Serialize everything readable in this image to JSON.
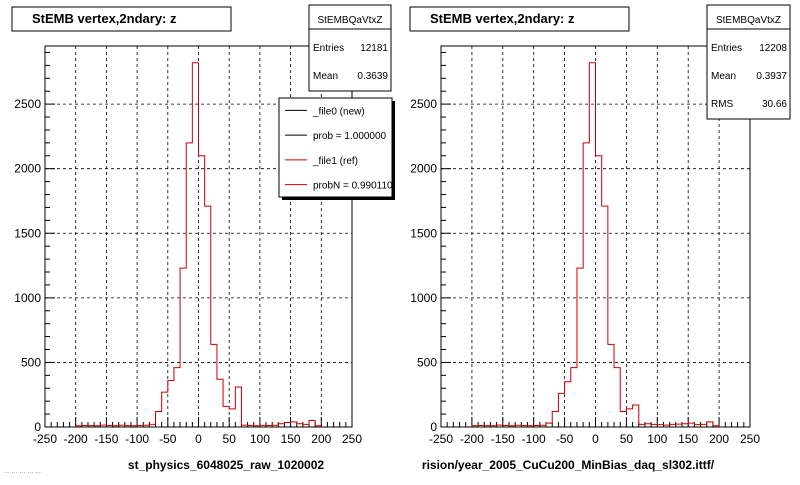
{
  "colors": {
    "background": "#ffffff",
    "ref_line": "#cc0000",
    "new_line": "#000000",
    "grid": "#000000"
  },
  "panels": [
    {
      "title": "StEMB  vertex,2ndary: z",
      "stats": {
        "name": "StEMBQaVtxZ",
        "rows": [
          {
            "label": "Entries",
            "value": "12181"
          },
          {
            "label": "Mean",
            "value": "0.3639"
          }
        ]
      },
      "legend": [
        {
          "label": "_file0 (new)",
          "color": "#000000"
        },
        {
          "label": "prob = 1.000000",
          "color": "#000000"
        },
        {
          "label": "_file1 (ref)",
          "color": "#cc0000"
        },
        {
          "label": "probN = 0.990110",
          "color": "#cc0000"
        }
      ],
      "xlabel": "st_physics_6048025_raw_1020002",
      "footer_text": "... ...  ... ... ..."
    },
    {
      "title": "StEMB  vertex,2ndary: z",
      "stats": {
        "name": "StEMBQaVtxZ",
        "rows": [
          {
            "label": "Entries",
            "value": "12208"
          },
          {
            "label": "Mean",
            "value": "0.3937"
          },
          {
            "label": "RMS",
            "value": "30.66"
          }
        ]
      },
      "legend": [],
      "xlabel": "rision/year_2005_CuCu200_MinBias_daq_sl302.ittf/",
      "footer_text": ""
    }
  ],
  "chart_data": [
    {
      "type": "histogram",
      "title": "StEMB  vertex,2ndary: z",
      "xlabel": "st_physics_6048025_raw_1020002",
      "ylabel": "",
      "xlim": [
        -250,
        250
      ],
      "ylim": [
        0,
        2950
      ],
      "x_ticks": [
        -250,
        -200,
        -150,
        -100,
        -50,
        0,
        50,
        100,
        150,
        200,
        250
      ],
      "y_ticks": [
        0,
        500,
        1000,
        1500,
        2000,
        2500
      ],
      "grid": true,
      "legend_position": "top-right",
      "series": [
        {
          "name": "_file1 (ref)",
          "color": "#cc0000",
          "bin_edges": [
            -200,
            -190,
            -180,
            -170,
            -160,
            -150,
            -140,
            -130,
            -120,
            -110,
            -100,
            -90,
            -80,
            -70,
            -60,
            -50,
            -40,
            -30,
            -20,
            -10,
            0,
            10,
            20,
            30,
            40,
            50,
            60,
            70,
            80,
            90,
            100,
            110,
            120,
            130,
            140,
            150,
            160,
            170,
            180,
            190,
            200
          ],
          "counts": [
            10,
            12,
            11,
            10,
            15,
            12,
            10,
            14,
            11,
            10,
            12,
            14,
            20,
            120,
            270,
            360,
            460,
            1230,
            2200,
            2820,
            2100,
            1710,
            640,
            370,
            160,
            140,
            310,
            15,
            12,
            10,
            13,
            12,
            14,
            25,
            35,
            40,
            25,
            20,
            50,
            10
          ]
        }
      ]
    },
    {
      "type": "histogram",
      "title": "StEMB  vertex,2ndary: z",
      "xlabel": "rision/year_2005_CuCu200_MinBias_daq_sl302.ittf/",
      "ylabel": "",
      "xlim": [
        -250,
        250
      ],
      "ylim": [
        0,
        2950
      ],
      "x_ticks": [
        -250,
        -200,
        -150,
        -100,
        -50,
        0,
        50,
        100,
        150,
        200,
        250
      ],
      "y_ticks": [
        0,
        500,
        1000,
        1500,
        2000,
        2500
      ],
      "grid": true,
      "legend_position": "none",
      "series": [
        {
          "name": "",
          "color": "#cc0000",
          "bin_edges": [
            -200,
            -190,
            -180,
            -170,
            -160,
            -150,
            -140,
            -130,
            -120,
            -110,
            -100,
            -90,
            -80,
            -70,
            -60,
            -50,
            -40,
            -30,
            -20,
            -10,
            0,
            10,
            20,
            30,
            40,
            50,
            60,
            70,
            80,
            90,
            100,
            110,
            120,
            130,
            140,
            150,
            160,
            170,
            180,
            190,
            200
          ],
          "counts": [
            10,
            12,
            11,
            10,
            15,
            12,
            10,
            14,
            11,
            10,
            12,
            14,
            30,
            120,
            260,
            350,
            460,
            1230,
            2200,
            2820,
            2100,
            1710,
            640,
            460,
            120,
            140,
            170,
            20,
            25,
            20,
            18,
            15,
            20,
            22,
            25,
            30,
            18,
            20,
            40,
            10
          ]
        }
      ]
    }
  ]
}
